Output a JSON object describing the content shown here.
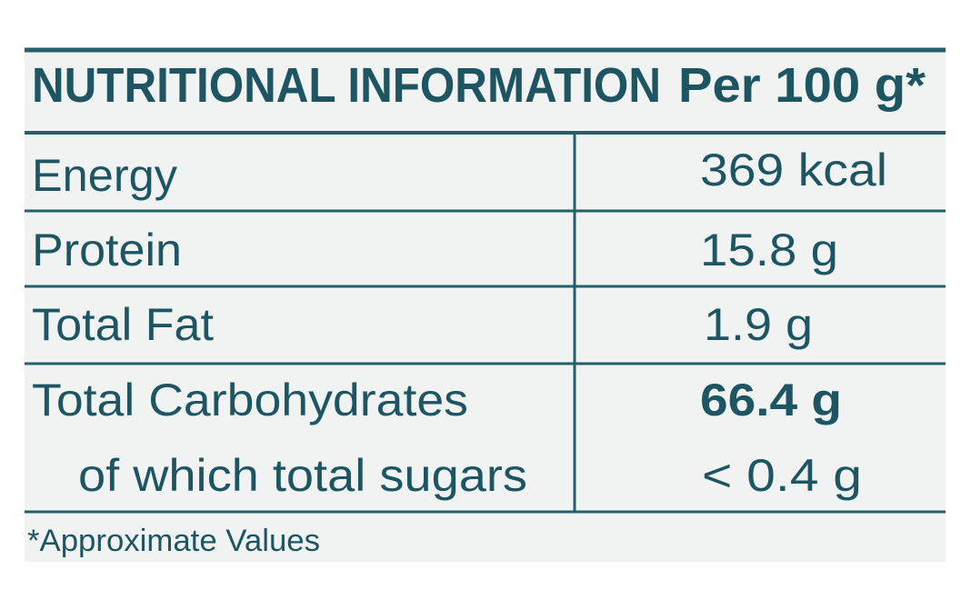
{
  "header": {
    "title": "NUTRITIONAL INFORMATION",
    "basis": "Per 100 g*"
  },
  "table": {
    "rows": [
      [
        "Energy",
        "369 kcal"
      ],
      [
        "Protein",
        "15.8 g"
      ],
      [
        "Total Fat",
        "1.9 g"
      ],
      [
        "Total Carbohydrates",
        "66.4 g"
      ],
      [
        "of which total sugars",
        "< 0.4 g"
      ]
    ]
  },
  "footnote": "*Approximate Values"
}
